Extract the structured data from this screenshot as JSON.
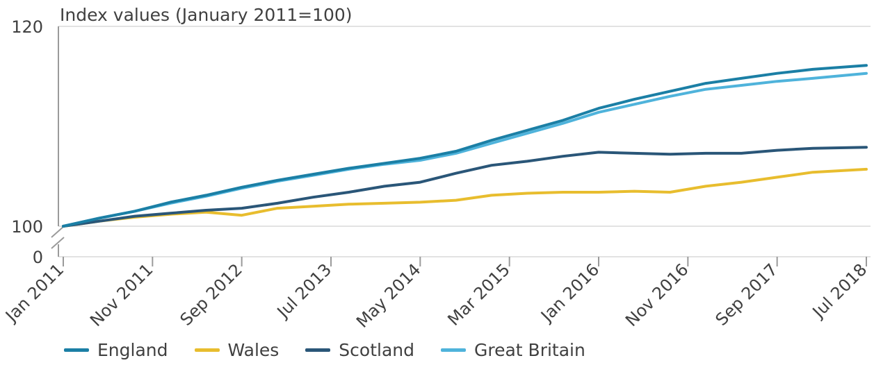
{
  "chart_data": {
    "type": "line",
    "title": "Index values (January 2011=100)",
    "y_ticks": [
      "120",
      "100",
      "0"
    ],
    "y_axis_break": true,
    "ylim": [
      100,
      120
    ],
    "x_tick_labels": [
      "Jan 2011",
      "Nov 2011",
      "Sep 2012",
      "Jul 2013",
      "May 2014",
      "Mar 2015",
      "Jan 2016",
      "Nov 2016",
      "Sep 2017",
      "Jul 2018"
    ],
    "x_start": "2011-01",
    "x_end": "2018-07",
    "grid": "horizontal",
    "legend_position": "bottom",
    "series": [
      {
        "name": "England",
        "color": "#1b7fa5",
        "points": [
          [
            "2011-01",
            100.0
          ],
          [
            "2011-05",
            100.8
          ],
          [
            "2011-09",
            101.5
          ],
          [
            "2012-01",
            102.4
          ],
          [
            "2012-05",
            103.1
          ],
          [
            "2012-09",
            103.9
          ],
          [
            "2013-01",
            104.6
          ],
          [
            "2013-05",
            105.2
          ],
          [
            "2013-09",
            105.8
          ],
          [
            "2014-01",
            106.3
          ],
          [
            "2014-05",
            106.8
          ],
          [
            "2014-09",
            107.5
          ],
          [
            "2015-01",
            108.6
          ],
          [
            "2015-05",
            109.6
          ],
          [
            "2015-09",
            110.6
          ],
          [
            "2016-01",
            111.8
          ],
          [
            "2016-05",
            112.7
          ],
          [
            "2016-09",
            113.5
          ],
          [
            "2017-01",
            114.3
          ],
          [
            "2017-05",
            114.8
          ],
          [
            "2017-09",
            115.3
          ],
          [
            "2018-01",
            115.7
          ],
          [
            "2018-07",
            116.1
          ]
        ]
      },
      {
        "name": "Wales",
        "color": "#e8bd2e",
        "points": [
          [
            "2011-01",
            100.0
          ],
          [
            "2011-05",
            100.5
          ],
          [
            "2011-09",
            100.9
          ],
          [
            "2012-01",
            101.2
          ],
          [
            "2012-05",
            101.4
          ],
          [
            "2012-09",
            101.1
          ],
          [
            "2013-01",
            101.8
          ],
          [
            "2013-05",
            102.0
          ],
          [
            "2013-09",
            102.2
          ],
          [
            "2014-01",
            102.3
          ],
          [
            "2014-05",
            102.4
          ],
          [
            "2014-09",
            102.6
          ],
          [
            "2015-01",
            103.1
          ],
          [
            "2015-05",
            103.3
          ],
          [
            "2015-09",
            103.4
          ],
          [
            "2016-01",
            103.4
          ],
          [
            "2016-05",
            103.5
          ],
          [
            "2016-09",
            103.4
          ],
          [
            "2017-01",
            104.0
          ],
          [
            "2017-05",
            104.4
          ],
          [
            "2017-09",
            104.9
          ],
          [
            "2018-01",
            105.4
          ],
          [
            "2018-07",
            105.7
          ]
        ]
      },
      {
        "name": "Scotland",
        "color": "#2a5678",
        "points": [
          [
            "2011-01",
            100.0
          ],
          [
            "2011-05",
            100.5
          ],
          [
            "2011-09",
            101.0
          ],
          [
            "2012-01",
            101.3
          ],
          [
            "2012-05",
            101.6
          ],
          [
            "2012-09",
            101.8
          ],
          [
            "2013-01",
            102.3
          ],
          [
            "2013-05",
            102.9
          ],
          [
            "2013-09",
            103.4
          ],
          [
            "2014-01",
            104.0
          ],
          [
            "2014-05",
            104.4
          ],
          [
            "2014-09",
            105.3
          ],
          [
            "2015-01",
            106.1
          ],
          [
            "2015-05",
            106.5
          ],
          [
            "2015-09",
            107.0
          ],
          [
            "2016-01",
            107.4
          ],
          [
            "2016-05",
            107.3
          ],
          [
            "2016-09",
            107.2
          ],
          [
            "2017-01",
            107.3
          ],
          [
            "2017-05",
            107.3
          ],
          [
            "2017-09",
            107.6
          ],
          [
            "2018-01",
            107.8
          ],
          [
            "2018-07",
            107.9
          ]
        ]
      },
      {
        "name": "Great Britain",
        "color": "#4fb3db",
        "points": [
          [
            "2011-01",
            100.0
          ],
          [
            "2011-05",
            100.8
          ],
          [
            "2011-09",
            101.5
          ],
          [
            "2012-01",
            102.3
          ],
          [
            "2012-05",
            103.0
          ],
          [
            "2012-09",
            103.8
          ],
          [
            "2013-01",
            104.5
          ],
          [
            "2013-05",
            105.1
          ],
          [
            "2013-09",
            105.7
          ],
          [
            "2014-01",
            106.2
          ],
          [
            "2014-05",
            106.6
          ],
          [
            "2014-09",
            107.3
          ],
          [
            "2015-01",
            108.3
          ],
          [
            "2015-05",
            109.3
          ],
          [
            "2015-09",
            110.3
          ],
          [
            "2016-01",
            111.4
          ],
          [
            "2016-05",
            112.2
          ],
          [
            "2016-09",
            113.0
          ],
          [
            "2017-01",
            113.7
          ],
          [
            "2017-05",
            114.1
          ],
          [
            "2017-09",
            114.5
          ],
          [
            "2018-01",
            114.8
          ],
          [
            "2018-07",
            115.3
          ]
        ]
      }
    ]
  }
}
